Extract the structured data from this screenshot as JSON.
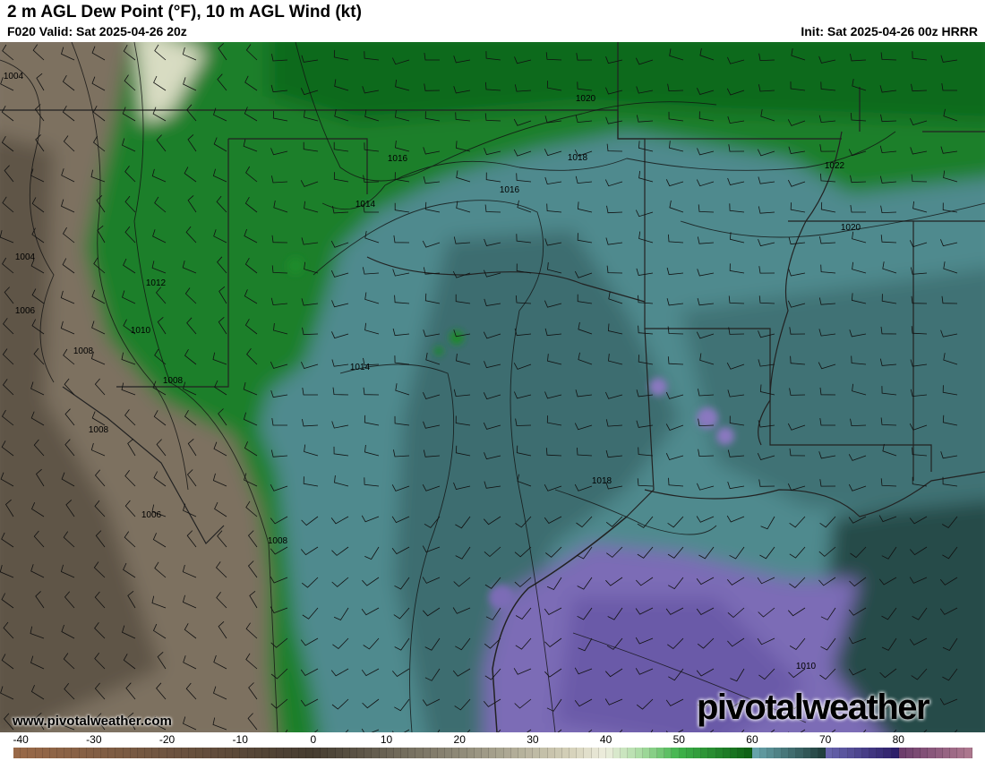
{
  "header": {
    "title": "2 m AGL Dew Point (°F), 10 m AGL Wind (kt)",
    "valid": "F020 Valid: Sat 2025-04-26 20z",
    "init": "Init: Sat 2025-04-26 00z HRRR"
  },
  "map": {
    "field": "2 m dew point",
    "colors": {
      "dry": "#8a7a66",
      "moist_green": "#1f8a2a",
      "teal": "#5f9ea0",
      "dark_teal": "#254d4a",
      "purple": "#7a6ab0"
    },
    "isobar_labels": [
      "1004",
      "1004",
      "1006",
      "1008",
      "1010",
      "1012",
      "1008",
      "1008",
      "1006",
      "1008",
      "1014",
      "1016",
      "1016",
      "1018",
      "1020",
      "1022",
      "1020",
      "1014",
      "1018",
      "1010"
    ]
  },
  "footer": {
    "website": "www.pivotalweather.com",
    "logo_text": "pivotalweather"
  },
  "colorbar": {
    "ticks": [
      "-40",
      "-30",
      "-20",
      "-10",
      "0",
      "10",
      "20",
      "30",
      "40",
      "50",
      "60",
      "70",
      "80"
    ],
    "range": [
      -41,
      90
    ],
    "stops": [
      {
        "v": -41,
        "c": "#9a6a48"
      },
      {
        "v": -20,
        "c": "#6e5440"
      },
      {
        "v": 0,
        "c": "#453c30"
      },
      {
        "v": 20,
        "c": "#8f8a78"
      },
      {
        "v": 35,
        "c": "#d4d0b8"
      },
      {
        "v": 40,
        "c": "#eeeede"
      },
      {
        "v": 45,
        "c": "#a6dba0"
      },
      {
        "v": 50,
        "c": "#3fb34a"
      },
      {
        "v": 60,
        "c": "#0b5e12"
      },
      {
        "v": 60.01,
        "c": "#6aa8b0"
      },
      {
        "v": 70,
        "c": "#1d3a38"
      },
      {
        "v": 70.01,
        "c": "#6a68b0"
      },
      {
        "v": 80,
        "c": "#2a1a66"
      },
      {
        "v": 80.01,
        "c": "#6a3a6a"
      },
      {
        "v": 90,
        "c": "#b07a90"
      }
    ]
  }
}
